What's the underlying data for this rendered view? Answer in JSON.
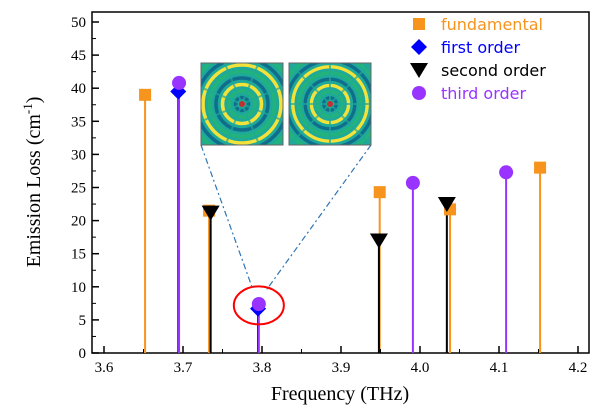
{
  "chart_data": {
    "type": "scatter",
    "xlabel": "Frequency (THz)",
    "ylabel": "Emission Loss (cm",
    "ylabel_sup": "-1",
    "ylabel_close": ")",
    "xlim": [
      3.6,
      4.2
    ],
    "ylim": [
      0,
      52
    ],
    "x_ticks": [
      "3.6",
      "3.7",
      "3.8",
      "3.9",
      "4.0",
      "4.1",
      "4.2"
    ],
    "y_ticks": [
      "0",
      "5",
      "10",
      "15",
      "20",
      "25",
      "30",
      "35",
      "40",
      "45",
      "50"
    ],
    "grid": false,
    "legend_position": "top-right",
    "series": [
      {
        "name": "fundamental",
        "marker": "square",
        "color": "#F7941D",
        "points": [
          [
            3.652,
            39
          ],
          [
            3.733,
            21.5
          ],
          [
            3.949,
            24.3
          ],
          [
            4.038,
            21.7
          ],
          [
            4.152,
            28
          ]
        ]
      },
      {
        "name": "first order",
        "marker": "diamond",
        "color": "#0000FF",
        "points": [
          [
            3.694,
            39.5
          ],
          [
            3.795,
            6.7
          ]
        ]
      },
      {
        "name": "second order",
        "marker": "triangle-down",
        "color": "#000000",
        "points": [
          [
            3.735,
            21.2
          ],
          [
            3.948,
            17
          ],
          [
            4.034,
            22.5
          ]
        ]
      },
      {
        "name": "third order",
        "marker": "circle",
        "color": "#9933FF",
        "points": [
          [
            3.695,
            40.8
          ],
          [
            3.796,
            7.4
          ],
          [
            3.991,
            25.7
          ],
          [
            4.109,
            27.3
          ]
        ]
      }
    ],
    "inset": {
      "description_icons": [
        "field-pattern-icon",
        "field-pattern-icon"
      ],
      "highlight_color": "#FF0000",
      "highlight_center": [
        3.796,
        7.2
      ],
      "leader_color": "#2E75B6"
    }
  }
}
